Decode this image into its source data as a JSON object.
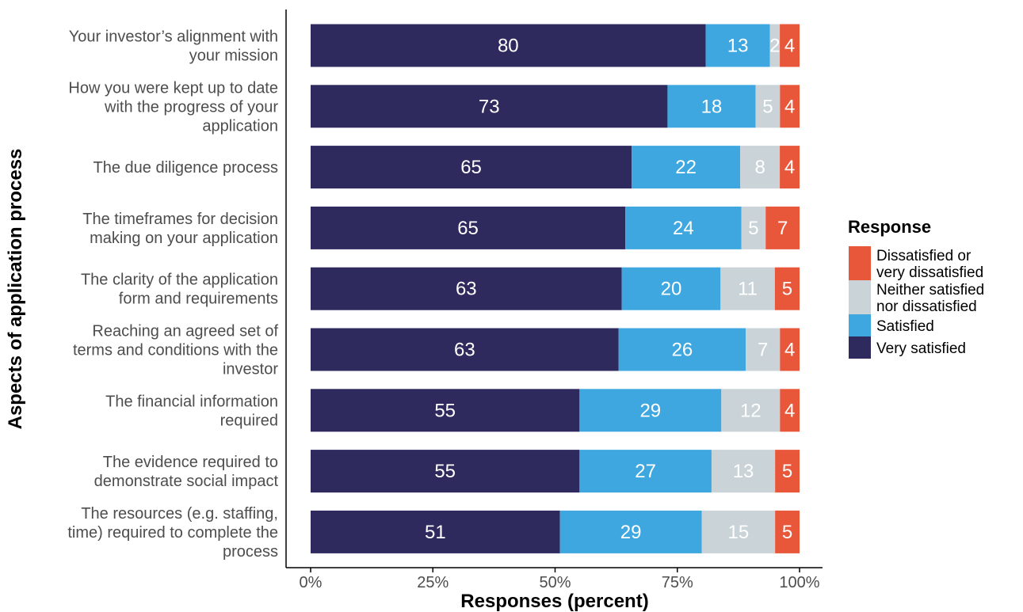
{
  "chart_data": {
    "type": "bar",
    "orientation": "horizontal",
    "stacked": true,
    "xlabel": "Responses (percent)",
    "ylabel": "Aspects of application process",
    "xlim": [
      0,
      100
    ],
    "x_ticks": [
      "0%",
      "25%",
      "50%",
      "75%",
      "100%"
    ],
    "grid": false,
    "legend_position": "right",
    "legend_title": "Response",
    "categories": [
      [
        "Your investor’s alignment with",
        "your mission"
      ],
      [
        "How you were kept up to date",
        "with the progress of your",
        "application"
      ],
      [
        "The due diligence process"
      ],
      [
        "The timeframes for decision",
        "making on your application"
      ],
      [
        "The clarity of the application",
        "form and requirements"
      ],
      [
        "Reaching an agreed set of",
        "terms and conditions with the",
        "investor"
      ],
      [
        "The financial information",
        "required"
      ],
      [
        "The evidence required to",
        "demonstrate social impact"
      ],
      [
        "The resources (e.g. staffing,",
        "time) required to complete the",
        "process"
      ]
    ],
    "series": [
      {
        "name": "Very satisfied",
        "color": "#2e2a5e",
        "values": [
          80,
          73,
          65,
          65,
          63,
          63,
          55,
          55,
          51
        ]
      },
      {
        "name": "Satisfied",
        "color": "#3fa7e0",
        "values": [
          13,
          18,
          22,
          24,
          20,
          26,
          29,
          27,
          29
        ]
      },
      {
        "name": "Neither satisfied nor dissatisfied",
        "color": "#c9d3d8",
        "values": [
          2,
          5,
          8,
          5,
          11,
          7,
          12,
          13,
          15
        ]
      },
      {
        "name": "Dissatisfied or very dissatisfied",
        "color": "#e8573a",
        "values": [
          4,
          4,
          4,
          7,
          5,
          4,
          4,
          5,
          5
        ]
      }
    ],
    "legend_entries": [
      {
        "lines": [
          "Dissatisfied or",
          "very dissatisfied"
        ],
        "color": "#e8573a"
      },
      {
        "lines": [
          "Neither satisfied",
          "nor dissatisfied"
        ],
        "color": "#c9d3d8"
      },
      {
        "lines": [
          "Satisfied"
        ],
        "color": "#3fa7e0"
      },
      {
        "lines": [
          "Very satisfied"
        ],
        "color": "#2e2a5e"
      }
    ]
  }
}
